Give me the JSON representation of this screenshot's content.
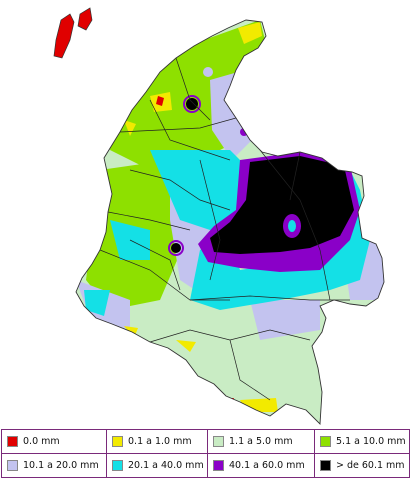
{
  "legend": {
    "items": [
      {
        "label": "0.0 mm",
        "color": "#e00000"
      },
      {
        "label": "0.1 a 1.0 mm",
        "color": "#f2ea00"
      },
      {
        "label": "1.1 a 5.0 mm",
        "color": "#c9ecc4"
      },
      {
        "label": "5.1 a 10.0 mm",
        "color": "#8ee000"
      },
      {
        "label": "10.1 a 20.0 mm",
        "color": "#c3c3ef"
      },
      {
        "label": "20.1 a 40.0 mm",
        "color": "#14e0e6"
      },
      {
        "label": "40.1 a 60.0 mm",
        "color": "#8a00c8"
      },
      {
        "label": "> de 60.1 mm",
        "color": "#000000"
      }
    ]
  }
}
